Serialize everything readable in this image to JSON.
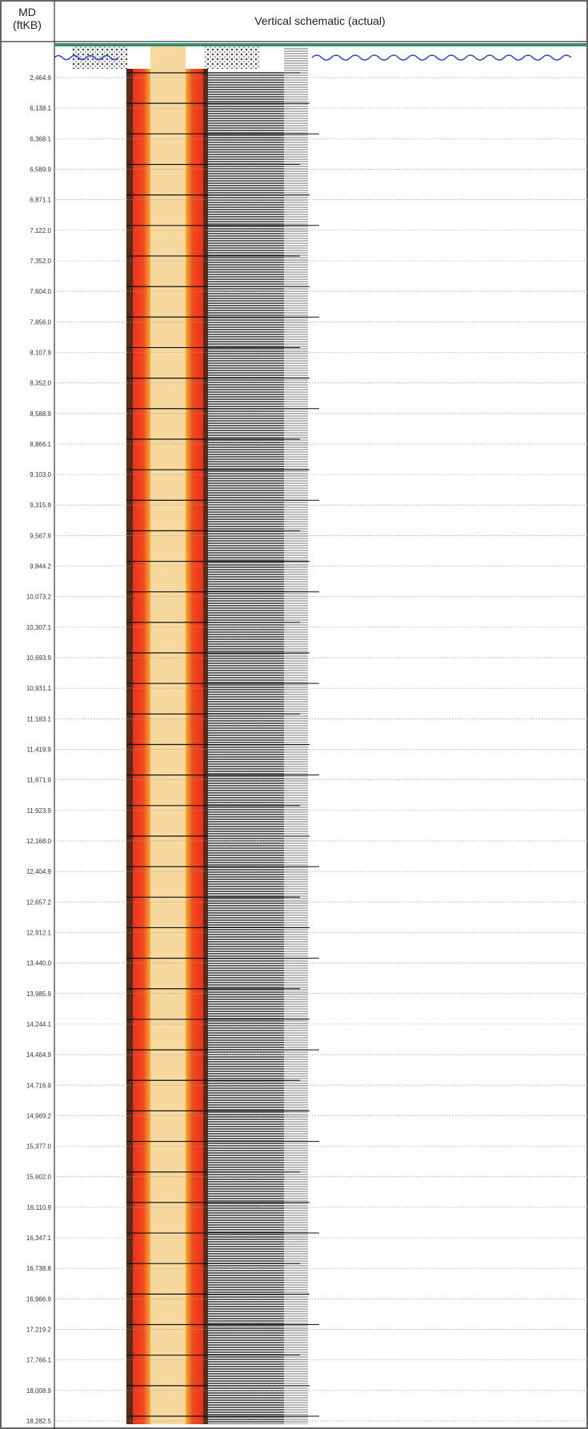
{
  "header": {
    "md_title": "MD\n(ftKB)",
    "schematic_title": "Vertical schematic (actual)"
  },
  "md_labels": [
    "2,464.9",
    "6,138.1",
    "6,368.1",
    "6,589.9",
    "6,871.1",
    "7,122.0",
    "7,352.0",
    "7,604.0",
    "7,856.0",
    "8,107.9",
    "8,352.0",
    "8,588.9",
    "8,866.1",
    "9,103.0",
    "9,315.9",
    "9,567.9",
    "9,844.2",
    "10,073.2",
    "10,307.1",
    "10,693.9",
    "10,931.1",
    "11,183.1",
    "11,419.9",
    "11,671.9",
    "11,923.9",
    "12,168.0",
    "12,404.9",
    "12,657.2",
    "12,912.1",
    "13,440.0",
    "13,985.9",
    "14,244.1",
    "14,464.9",
    "14,716.9",
    "14,969.2",
    "15,377.0",
    "15,602.0",
    "16,110.9",
    "16,347.1",
    "16,738.8",
    "16,966.9",
    "17,219.2",
    "17,766.1",
    "18,008.9",
    "18,282.5"
  ]
}
